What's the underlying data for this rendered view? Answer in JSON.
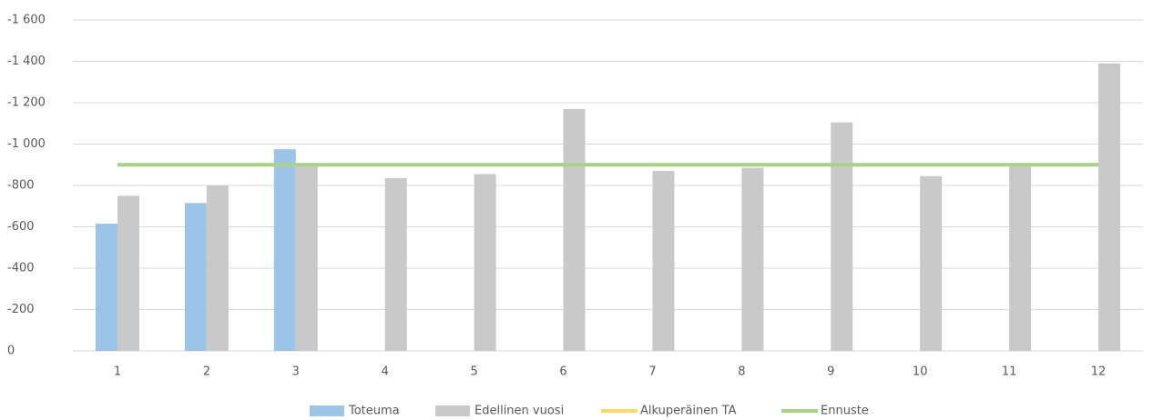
{
  "chart_data": {
    "type": "bar",
    "categories": [
      "1",
      "2",
      "3",
      "4",
      "5",
      "6",
      "7",
      "8",
      "9",
      "10",
      "11",
      "12"
    ],
    "series": [
      {
        "name": "Toteuma",
        "type": "bar",
        "color": "#9dc3e6",
        "values": [
          -615,
          -715,
          -975,
          null,
          null,
          null,
          null,
          null,
          null,
          null,
          null,
          null
        ]
      },
      {
        "name": "Edellinen vuosi",
        "type": "bar",
        "color": "#c9c9c9",
        "values": [
          -750,
          -800,
          -900,
          -835,
          -855,
          -1170,
          -870,
          -885,
          -1105,
          -845,
          -900,
          -1390
        ]
      },
      {
        "name": "Alkuperäinen TA",
        "type": "line",
        "color": "#ffd966",
        "values": [
          -900,
          -900,
          -900,
          -900,
          -900,
          -900,
          -900,
          -900,
          -900,
          -900,
          -900,
          -900
        ]
      },
      {
        "name": "Ennuste",
        "type": "line",
        "color": "#a9d18e",
        "values": [
          -900,
          -900,
          -900,
          -900,
          -900,
          -900,
          -900,
          -900,
          -900,
          -900,
          -900,
          -900
        ]
      }
    ],
    "ylim": [
      0,
      -1600
    ],
    "yticks": [
      0,
      -200,
      -400,
      -600,
      -800,
      {
        "value": -1000,
        "label": "-1 000"
      },
      {
        "value": -1200,
        "label": "-1 200"
      },
      {
        "value": -1400,
        "label": "-1 400"
      },
      {
        "value": -1600,
        "label": "-1 600"
      }
    ],
    "grid": true,
    "legend": "bottom"
  }
}
